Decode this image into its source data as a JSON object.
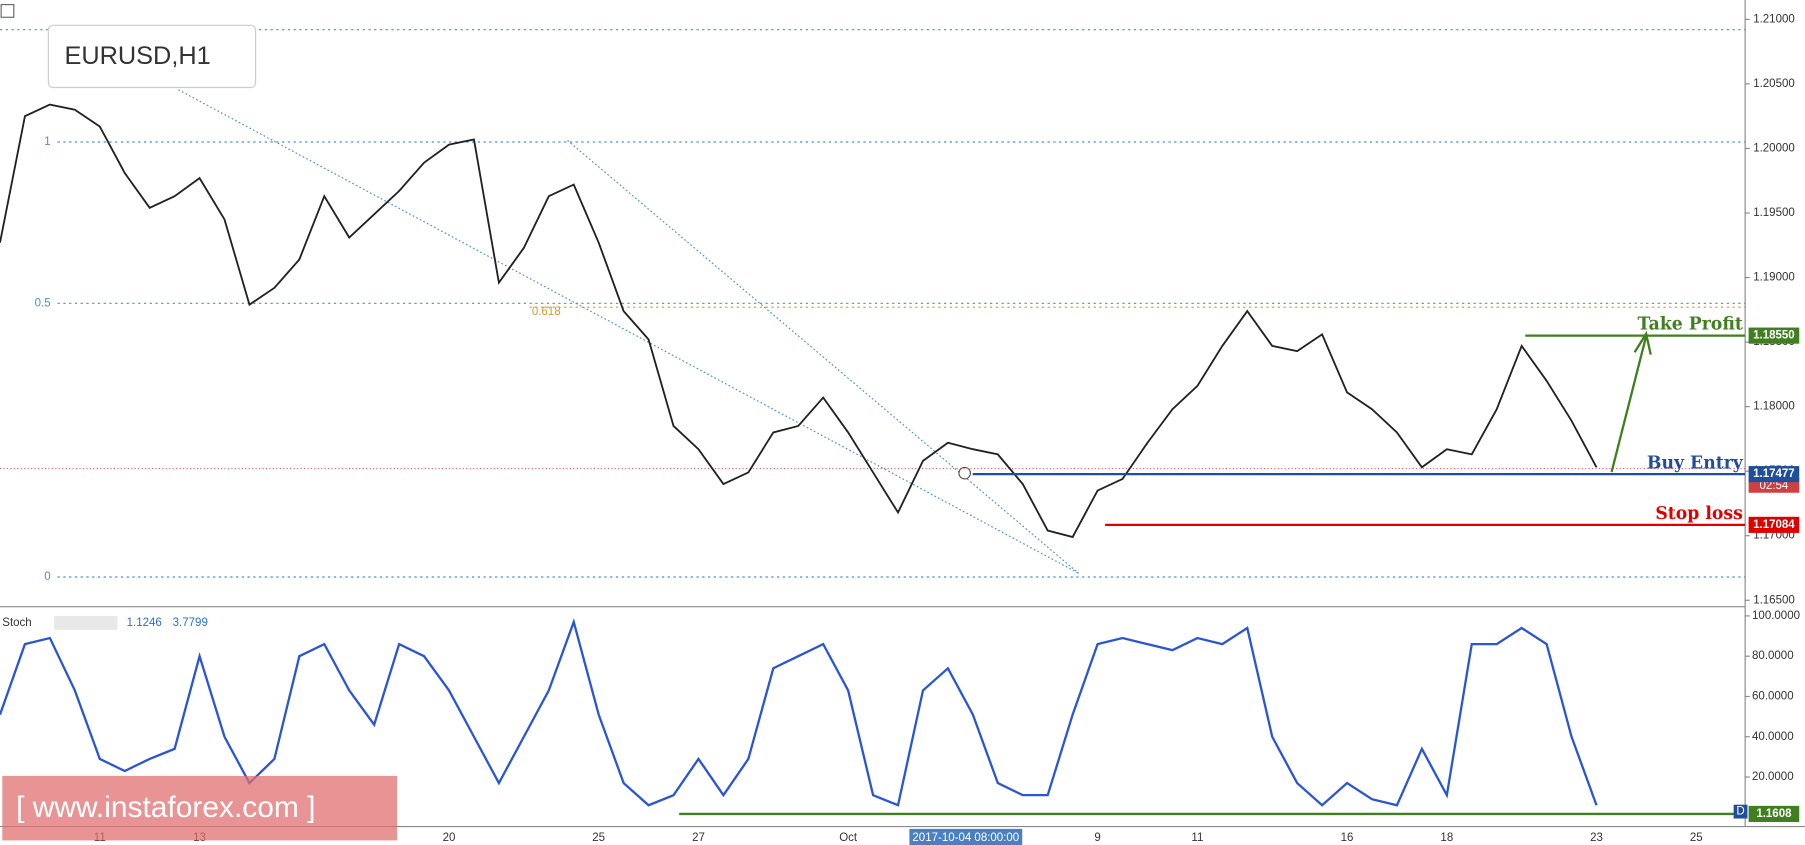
{
  "chart_data": [
    {
      "type": "line",
      "title": "EURUSD,H1",
      "categories": [
        null,
        null,
        null,
        null,
        "11",
        null,
        null,
        null,
        "13",
        null,
        null,
        null,
        null,
        null,
        null,
        null,
        null,
        null,
        "20",
        null,
        null,
        null,
        null,
        null,
        "25",
        null,
        null,
        null,
        "27",
        null,
        null,
        null,
        null,
        null,
        "Oct",
        null,
        null,
        null,
        null,
        null,
        null,
        null,
        null,
        null,
        "9",
        null,
        null,
        null,
        "11",
        null,
        null,
        null,
        null,
        null,
        "16",
        null,
        null,
        null,
        "18",
        null,
        null,
        null,
        null,
        null,
        "23",
        null,
        null,
        null,
        "25",
        null
      ],
      "values": [
        1.1927,
        1.2025,
        1.2034,
        1.203,
        1.2017,
        1.1981,
        1.1954,
        1.1963,
        1.1977,
        1.1945,
        1.1879,
        1.1892,
        1.1914,
        1.1963,
        1.1931,
        1.1949,
        1.1967,
        1.1989,
        1.2003,
        1.2007,
        1.1896,
        1.1923,
        1.1963,
        1.1972,
        1.1927,
        1.1874,
        1.1852,
        1.1785,
        1.1767,
        1.174,
        1.1749,
        1.178,
        1.1785,
        1.1807,
        1.178,
        1.1749,
        1.1718,
        1.1758,
        1.1772,
        1.1767,
        1.1763,
        1.174,
        1.1704,
        1.1699,
        1.1735,
        1.1744,
        1.1772,
        1.1798,
        1.1816,
        1.1847,
        1.1874,
        1.1847,
        1.1843,
        1.1856,
        1.1811,
        1.1798,
        1.178,
        1.1753,
        1.1767,
        1.1763,
        1.1798,
        1.1847,
        1.182,
        1.1789,
        1.1753,
        null,
        null,
        null,
        null,
        null
      ],
      "color": "#222222",
      "ylim": [
        1.1645,
        1.2115
      ],
      "yticks": [
        {
          "value": 1.165,
          "label": "1.16500"
        },
        {
          "value": 1.17,
          "label": "1.17000"
        },
        {
          "value": 1.175,
          "label": "1.17500"
        },
        {
          "value": 1.18,
          "label": "1.18000"
        },
        {
          "value": 1.185,
          "label": "1.18500"
        },
        {
          "value": 1.19,
          "label": "1.19000"
        },
        {
          "value": 1.195,
          "label": "1.19500"
        },
        {
          "value": 1.2,
          "label": "1.20000"
        },
        {
          "value": 1.205,
          "label": "1.20500"
        },
        {
          "value": 1.21,
          "label": "1.21000"
        }
      ],
      "dotted_levels": [
        1.2092
      ],
      "fib_levels": [
        {
          "value": 1.2005,
          "label": "1"
        },
        {
          "value": 1.188,
          "label": "0.5"
        },
        {
          "value": 1.1668,
          "label": "0"
        }
      ],
      "fib_618": {
        "value": 1.1877,
        "label": "0.618"
      },
      "current_price": 1.1752,
      "timer": "02:54",
      "trade_lines": [
        {
          "label": "Take Profit",
          "value": 1.1855,
          "value_label": "1.18550",
          "color": "#3f7f1f"
        },
        {
          "label": "Buy Entry",
          "value": 1.17477,
          "value_label": "1.17477",
          "color": "#1f4e9c"
        },
        {
          "label": "Stop loss",
          "value": 1.17084,
          "value_label": "1.17084",
          "color": "#e00000"
        }
      ],
      "cursor_label": "2017-10-04 08:00:00",
      "watermark": "[ www.instaforex.com ]"
    },
    {
      "type": "line",
      "title": "Stoch",
      "readouts": [
        "1.1246",
        "3.7799"
      ],
      "values": [
        51,
        86,
        89,
        63,
        29,
        23,
        29,
        34,
        80,
        40,
        17,
        29,
        80,
        86,
        63,
        46,
        86,
        80,
        63,
        40,
        17,
        40,
        63,
        97,
        51,
        17,
        6,
        11,
        29,
        11,
        29,
        74,
        80,
        86,
        63,
        11,
        6,
        63,
        74,
        51,
        17,
        11,
        11,
        51,
        86,
        89,
        86,
        83,
        89,
        86,
        94,
        40,
        17,
        6,
        17,
        9,
        6,
        34,
        11,
        86,
        86,
        94,
        86,
        40,
        6,
        null,
        null,
        null,
        null,
        null
      ],
      "color": "#2a55d4",
      "ylim": [
        -4.6,
        104
      ],
      "yticks": [
        {
          "value": 20,
          "label": "20.0000"
        },
        {
          "value": 40,
          "label": "40.0000"
        },
        {
          "value": 60,
          "label": "60.0000"
        },
        {
          "value": 80,
          "label": "80.0000"
        },
        {
          "value": 100,
          "label": "100.0000"
        }
      ],
      "tag": "1.1608",
      "tag_marker": "D"
    }
  ]
}
